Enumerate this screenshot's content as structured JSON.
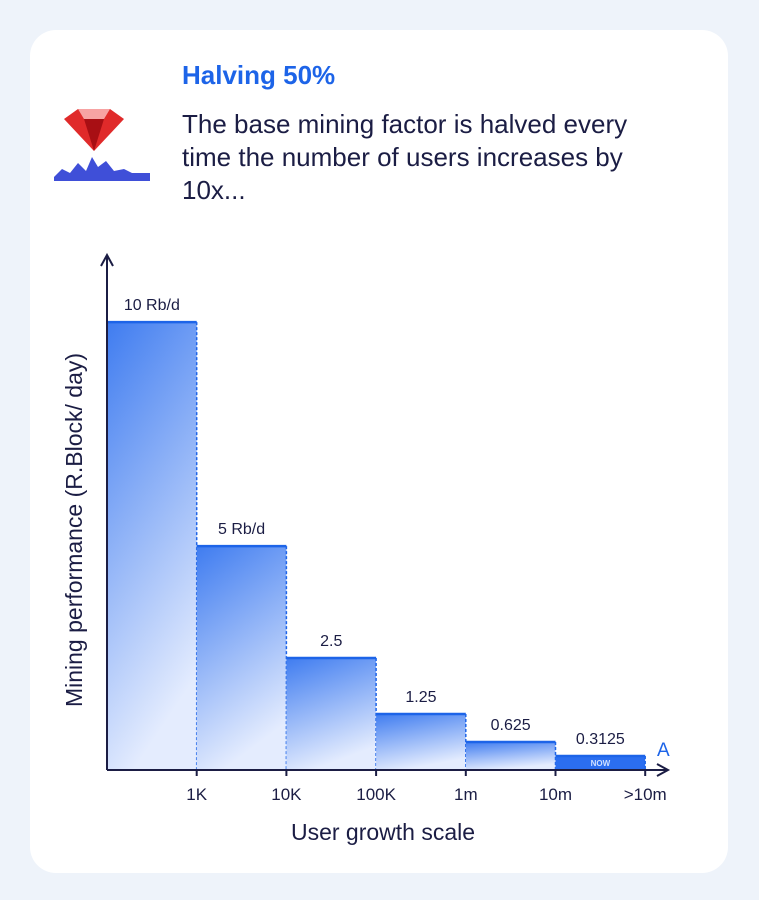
{
  "header": {
    "title": "Halving 50%",
    "description": "The base mining factor is halved every time the number of users increases by 10x..."
  },
  "colors": {
    "accent": "#1d64e8",
    "text": "#1b1d44",
    "bar_top": "#3f7cf0",
    "bar_bottom": "#dbe6fd",
    "gem": "#e02a2a"
  },
  "icons": {
    "logo": "ruby-gem-icon"
  },
  "chart_data": {
    "type": "bar",
    "title": "",
    "xlabel": "User growth scale",
    "ylabel": "Mining performance (R.Block/ day)",
    "categories": [
      "<1K",
      "1K–10K",
      "10K–100K",
      "100K–1m",
      "1m–10m",
      "10m–>10m"
    ],
    "x_tick_labels": [
      "1K",
      "10K",
      "100K",
      "1m",
      "10m",
      ">10m"
    ],
    "values": [
      10,
      5,
      2.5,
      1.25,
      0.625,
      0.3125
    ],
    "data_labels": [
      "10 Rb/d",
      "5 Rb/d",
      "2.5",
      "1.25",
      "0.625",
      "0.3125"
    ],
    "ylim": [
      0,
      11.5
    ],
    "grid": false,
    "highlight": {
      "index": 5,
      "label": "NOW"
    },
    "axis_end_label": "A"
  }
}
